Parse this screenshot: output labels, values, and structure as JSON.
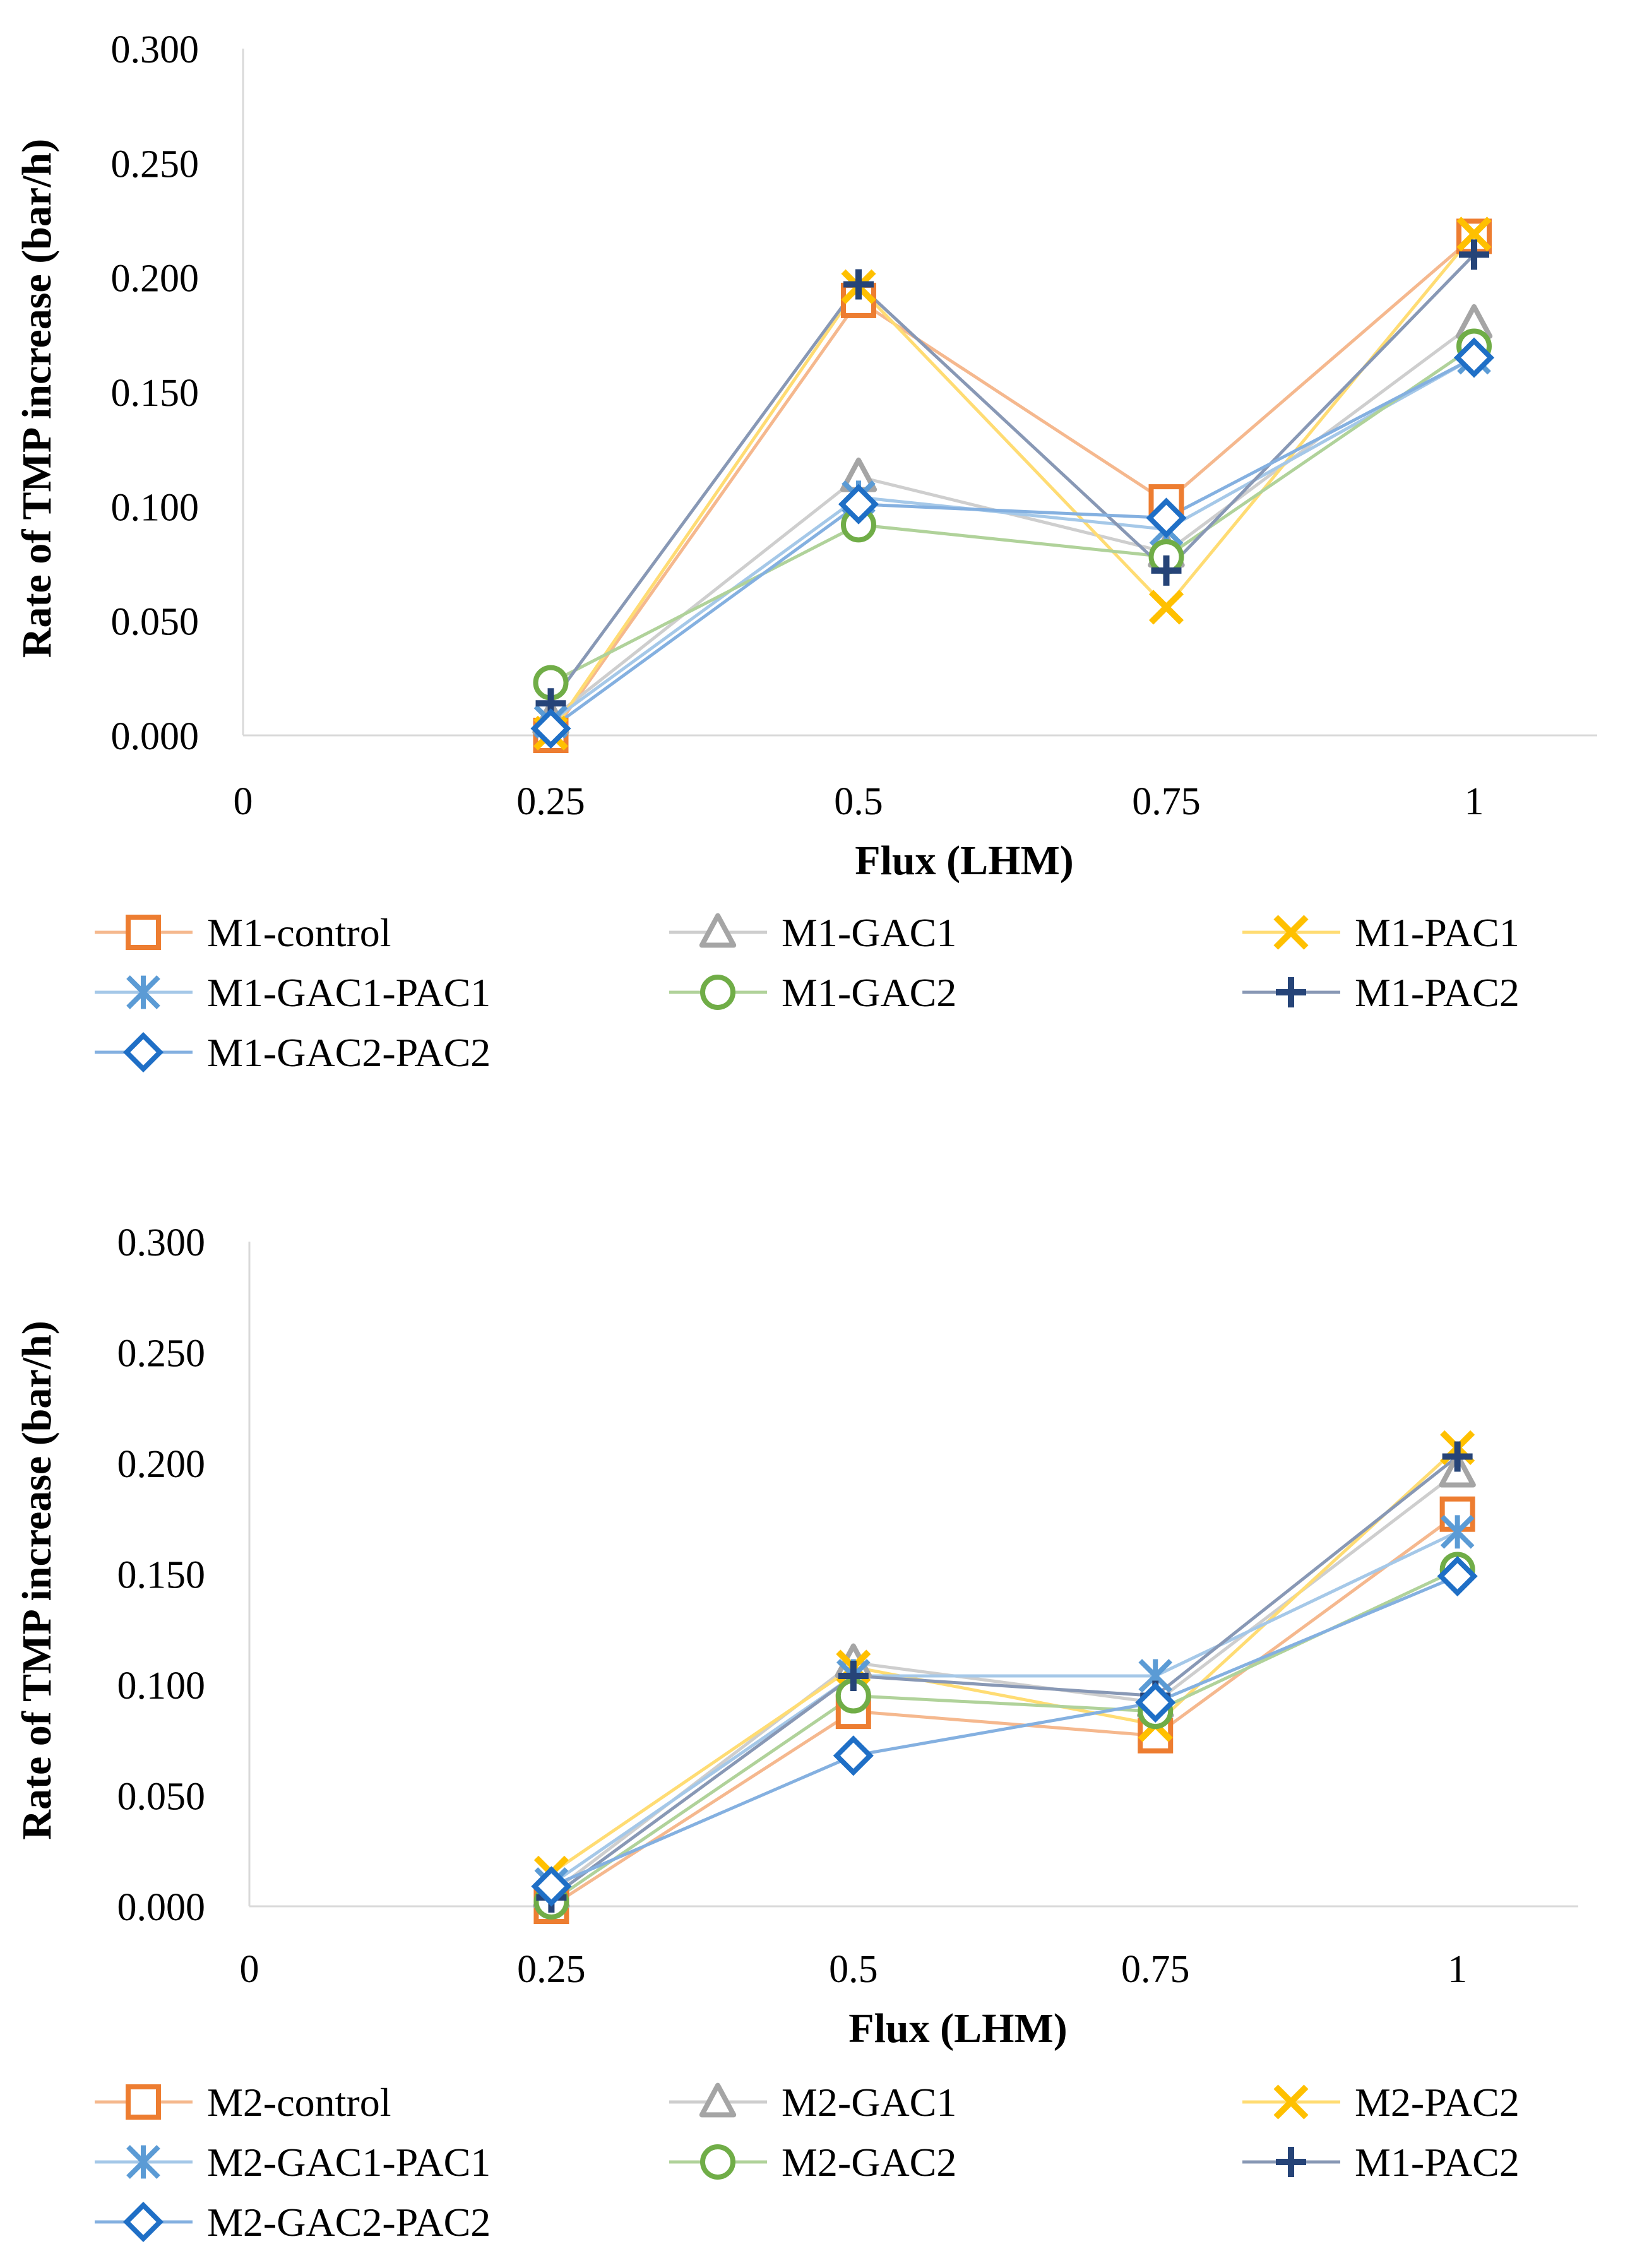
{
  "chart_data": [
    {
      "type": "line",
      "xlabel": "Flux (LHM)",
      "ylabel": "Rate of TMP increase (bar/h)",
      "xlim": [
        0,
        1.1
      ],
      "ylim": [
        0,
        0.3
      ],
      "x_ticks": [
        "0",
        "0.25",
        "0.5",
        "0.75",
        "1"
      ],
      "y_ticks": [
        "0.000",
        "0.050",
        "0.100",
        "0.150",
        "0.200",
        "0.250",
        "0.300"
      ],
      "x": [
        0.25,
        0.5,
        0.75,
        1
      ],
      "legend_position": "bottom",
      "series": [
        {
          "name": "M1-control",
          "marker": "square",
          "color": "#ED7D31",
          "values": [
            0.0,
            0.19,
            0.102,
            0.218
          ]
        },
        {
          "name": "M1-GAC1",
          "marker": "triangle",
          "color": "#A5A5A5",
          "values": [
            0.007,
            0.113,
            0.08,
            0.18
          ]
        },
        {
          "name": "M1-PAC1",
          "marker": "x",
          "color": "#FFC000",
          "values": [
            0.001,
            0.196,
            0.056,
            0.219
          ]
        },
        {
          "name": "M1-GAC1-PAC1",
          "marker": "star",
          "color": "#5B9BD5",
          "values": [
            0.006,
            0.104,
            0.09,
            0.165
          ]
        },
        {
          "name": "M1-GAC2",
          "marker": "circle",
          "color": "#70AD47",
          "values": [
            0.023,
            0.092,
            0.078,
            0.17
          ]
        },
        {
          "name": "M1-PAC2",
          "marker": "plus",
          "color": "#264478",
          "values": [
            0.014,
            0.197,
            0.072,
            0.21
          ]
        },
        {
          "name": "M1-GAC2-PAC2",
          "marker": "diamond",
          "color": "#1F6FC6",
          "values": [
            0.003,
            0.101,
            0.095,
            0.165
          ]
        }
      ]
    },
    {
      "type": "line",
      "xlabel": "Flux (LHM)",
      "ylabel": "Rate of TMP increase (bar/h)",
      "xlim": [
        0,
        1.1
      ],
      "ylim": [
        0,
        0.3
      ],
      "x_ticks": [
        "0",
        "0.25",
        "0.5",
        "0.75",
        "1"
      ],
      "y_ticks": [
        "0.000",
        "0.050",
        "0.100",
        "0.150",
        "0.200",
        "0.250",
        "0.300"
      ],
      "x": [
        0.25,
        0.5,
        0.75,
        1
      ],
      "legend_position": "bottom",
      "series": [
        {
          "name": "M2-control",
          "marker": "square",
          "color": "#ED7D31",
          "values": [
            0.0,
            0.088,
            0.077,
            0.177
          ]
        },
        {
          "name": "M2-GAC1",
          "marker": "triangle",
          "color": "#A5A5A5",
          "values": [
            0.006,
            0.11,
            0.092,
            0.196
          ]
        },
        {
          "name": "M2-PAC2",
          "marker": "x",
          "color": "#FFC000",
          "values": [
            0.015,
            0.108,
            0.082,
            0.207
          ]
        },
        {
          "name": "M2-GAC1-PAC1",
          "marker": "star",
          "color": "#5B9BD5",
          "values": [
            0.01,
            0.104,
            0.104,
            0.169
          ]
        },
        {
          "name": "M2-GAC2",
          "marker": "circle",
          "color": "#70AD47",
          "values": [
            0.002,
            0.095,
            0.088,
            0.152
          ]
        },
        {
          "name": "M1-PAC2",
          "marker": "plus",
          "color": "#264478",
          "values": [
            0.004,
            0.104,
            0.095,
            0.203
          ]
        },
        {
          "name": "M2-GAC2-PAC2",
          "marker": "diamond",
          "color": "#1F6FC6",
          "values": [
            0.009,
            0.068,
            0.092,
            0.149
          ]
        }
      ]
    }
  ]
}
